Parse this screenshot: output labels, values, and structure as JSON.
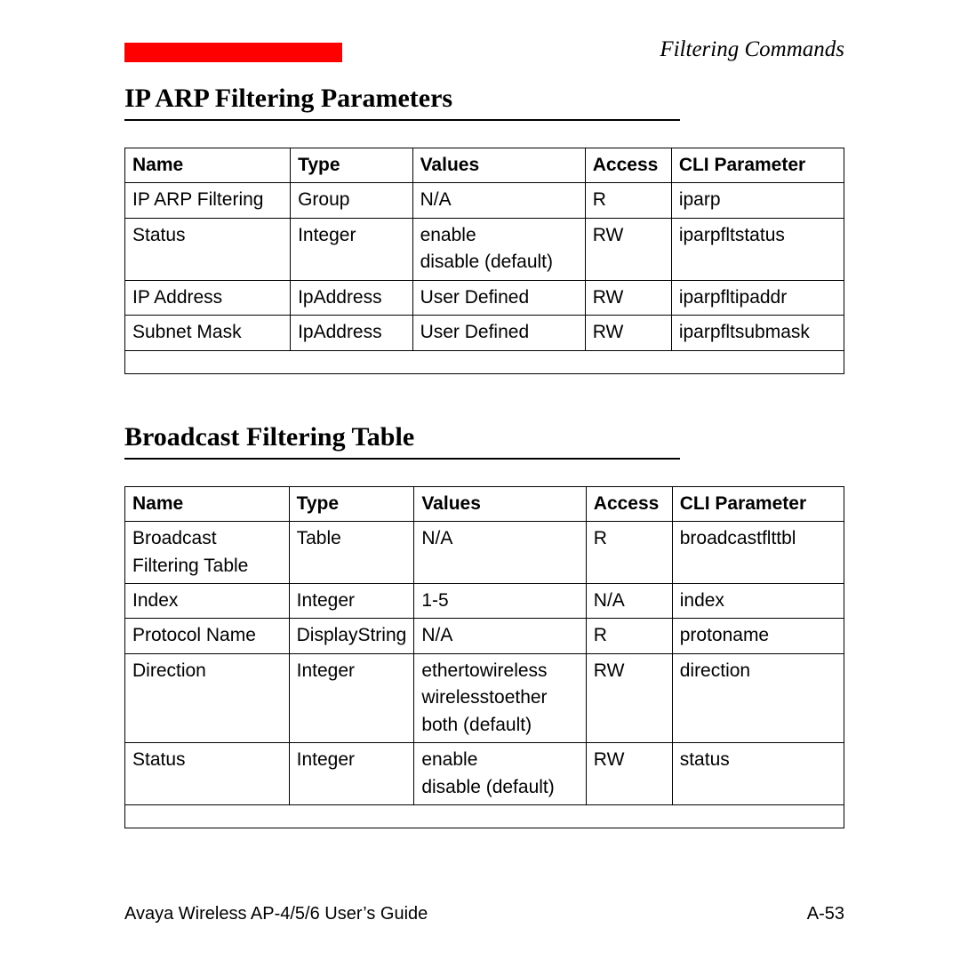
{
  "colors": {
    "red_bar": "#ff0000",
    "text": "#000000",
    "background": "#ffffff",
    "border": "#000000"
  },
  "header": {
    "section_label": "Filtering Commands"
  },
  "tables": {
    "columns": [
      "Name",
      "Type",
      "Values",
      "Access",
      "CLI Parameter"
    ]
  },
  "section1": {
    "title": "IP ARP Filtering Parameters",
    "rows": [
      {
        "name": "IP ARP Filtering",
        "type": "Group",
        "values": "N/A",
        "access": "R",
        "cli": "iparp"
      },
      {
        "name": "Status",
        "type": "Integer",
        "values": "enable\ndisable (default)",
        "access": "RW",
        "cli": "iparpfltstatus"
      },
      {
        "name": "IP Address",
        "type": "IpAddress",
        "values": "User Defined",
        "access": "RW",
        "cli": "iparpfltipaddr"
      },
      {
        "name": "Subnet Mask",
        "type": "IpAddress",
        "values": "User Defined",
        "access": "RW",
        "cli": "iparpfltsubmask"
      }
    ]
  },
  "section2": {
    "title": "Broadcast Filtering Table",
    "rows": [
      {
        "name": "Broadcast Filtering Table",
        "type": "Table",
        "values": "N/A",
        "access": "R",
        "cli": "broadcastflttbl"
      },
      {
        "name": "Index",
        "type": "Integer",
        "values": "1-5",
        "access": "N/A",
        "cli": "index"
      },
      {
        "name": "Protocol Name",
        "type": "DisplayString",
        "values": "N/A",
        "access": "R",
        "cli": "protoname"
      },
      {
        "name": "Direction",
        "type": "Integer",
        "values": "ethertowireless\nwirelesstoether\nboth (default)",
        "access": "RW",
        "cli": "direction"
      },
      {
        "name": "Status",
        "type": "Integer",
        "values": "enable\ndisable (default)",
        "access": "RW",
        "cli": "status"
      }
    ]
  },
  "footer": {
    "left": "Avaya Wireless AP-4/5/6 User’s Guide",
    "right": "A-53"
  }
}
